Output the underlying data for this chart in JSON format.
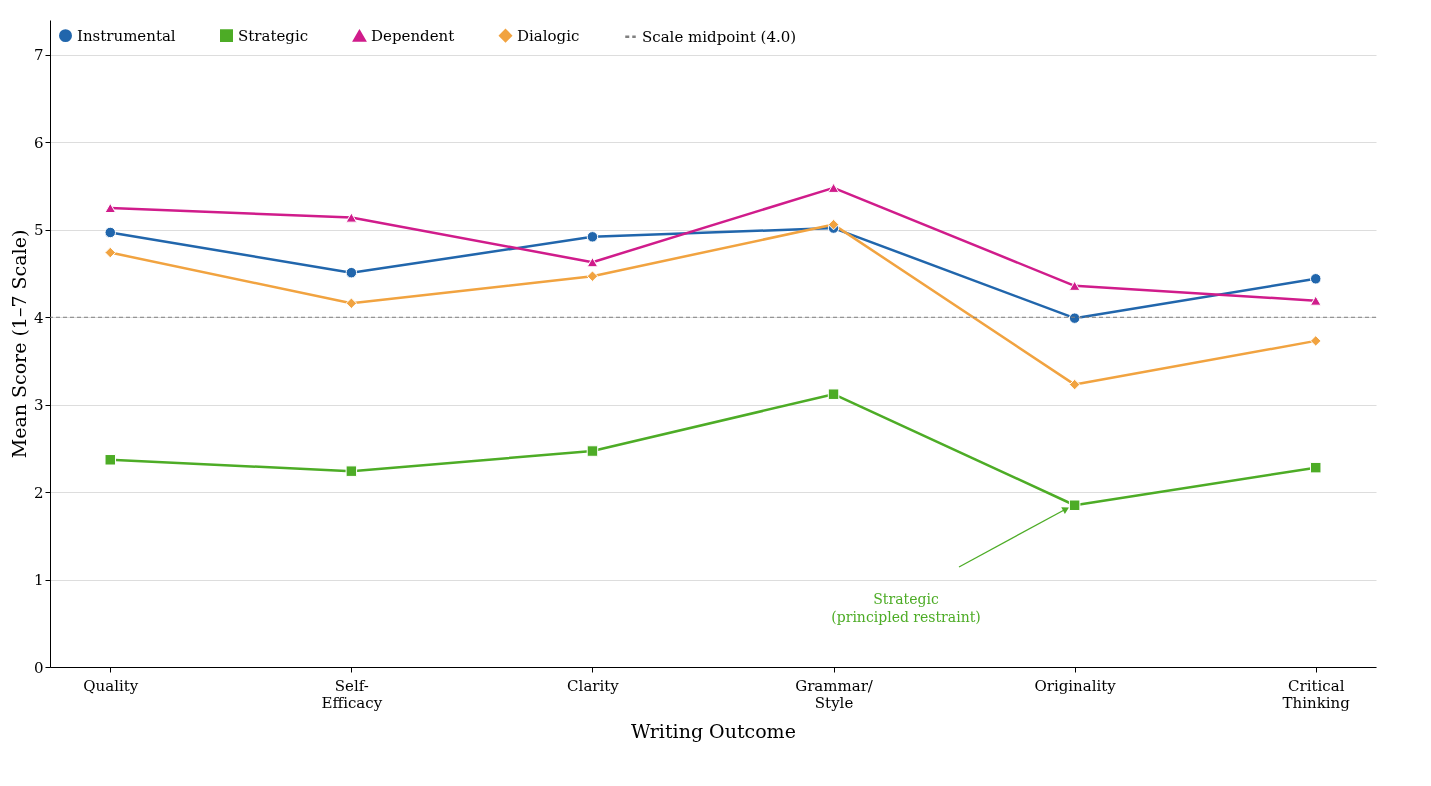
{
  "chart_data": {
    "type": "line",
    "xlabel": "Writing Outcome",
    "ylabel": "Mean Score (1–7 Scale)",
    "categories": [
      "Quality",
      "Self-\nEfficacy",
      "Clarity",
      "Grammar/\nStyle",
      "Originality",
      "Critical\nThinking"
    ],
    "series": [
      {
        "name": "Instrumental",
        "color": "#2166ac",
        "marker": "circle",
        "values": [
          4.97,
          4.51,
          4.92,
          5.02,
          3.99,
          4.44
        ]
      },
      {
        "name": "Strategic",
        "color": "#4dac26",
        "marker": "square",
        "values": [
          2.37,
          2.24,
          2.47,
          3.12,
          1.85,
          2.28
        ]
      },
      {
        "name": "Dependent",
        "color": "#d01c8b",
        "marker": "triangle",
        "values": [
          5.25,
          5.14,
          4.63,
          5.48,
          4.36,
          4.19
        ]
      },
      {
        "name": "Dialogic",
        "color": "#f1a340",
        "marker": "diamond",
        "values": [
          4.74,
          4.16,
          4.47,
          5.06,
          3.23,
          3.73
        ]
      }
    ],
    "ref_lines": [
      {
        "axis": "y",
        "value": 4.0,
        "label": "Scale midpoint (4.0)",
        "color": "#808080",
        "line_style": "dashed"
      }
    ],
    "annotations": [
      "Strategic\n(principled restraint)"
    ],
    "ylim": [
      0,
      7.4
    ],
    "yticks": [
      0,
      1,
      2,
      3,
      4,
      5,
      6,
      7
    ],
    "grid": "y",
    "legend": "top left",
    "line_style": "solid"
  }
}
